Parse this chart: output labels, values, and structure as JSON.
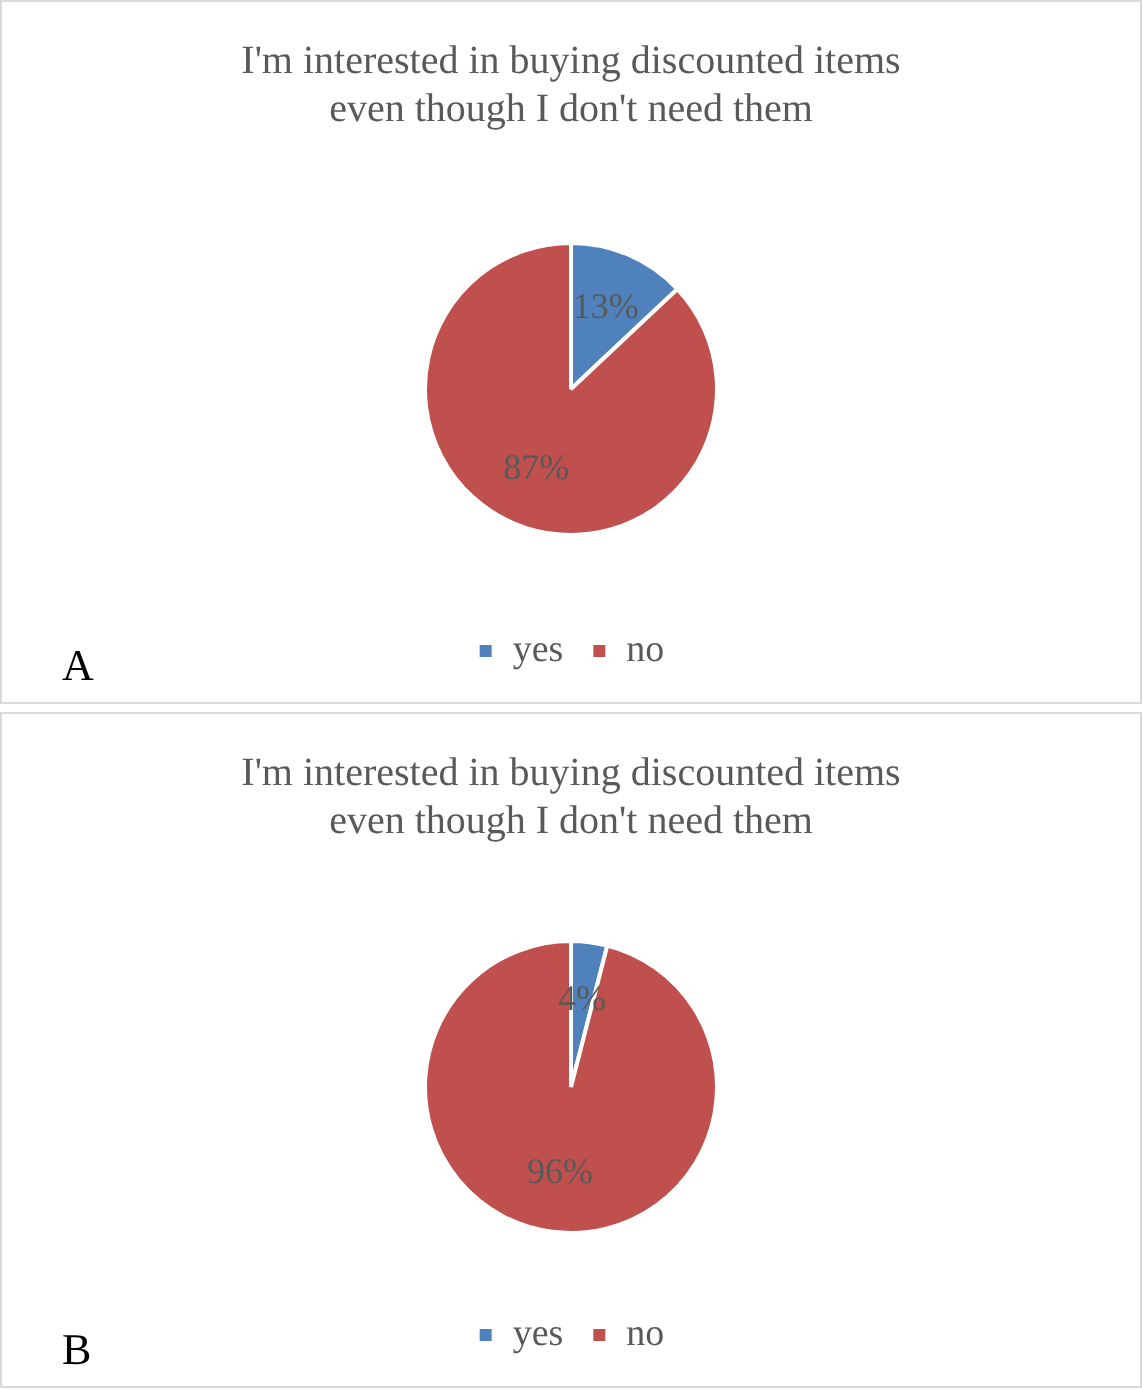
{
  "chart_data": [
    {
      "type": "pie",
      "title": "I'm interested in buying discounted items even though I don't need them",
      "categories": [
        "yes",
        "no"
      ],
      "values": [
        13,
        87
      ],
      "value_labels": [
        "13%",
        "87%"
      ],
      "colors": [
        "#4f81bd",
        "#c0504d"
      ],
      "legend": "bottom",
      "annotations": [
        "A"
      ]
    },
    {
      "type": "pie",
      "title": "I'm interested in buying discounted items even though I don't need them",
      "categories": [
        "yes",
        "no"
      ],
      "values": [
        4,
        96
      ],
      "value_labels": [
        "4%",
        "96%"
      ],
      "colors": [
        "#4f81bd",
        "#c0504d"
      ],
      "legend": "bottom",
      "annotations": [
        "B"
      ]
    }
  ]
}
